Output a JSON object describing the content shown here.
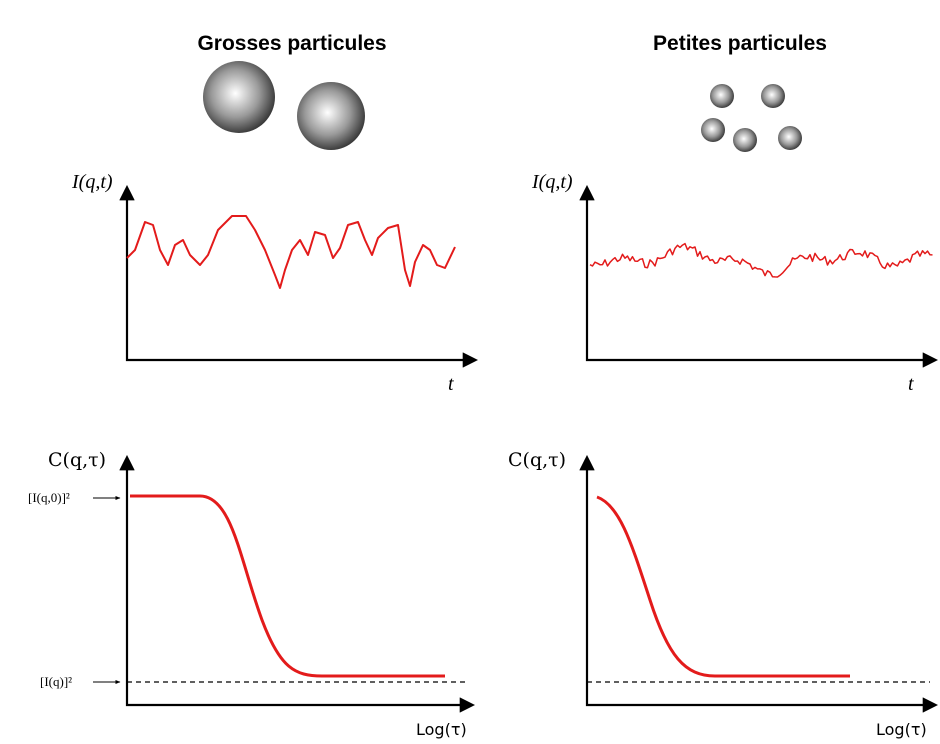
{
  "panels": [
    {
      "title": "Grosses particules",
      "intensity": {
        "y_label": "I(q,t)",
        "x_label": "t"
      },
      "correlation": {
        "y_label": "C(q,τ)",
        "x_label": "Log(τ)",
        "top_label": "[I(q,0)]²",
        "baseline_label": "[I(q)]²"
      }
    },
    {
      "title": "Petites particules",
      "intensity": {
        "y_label": "I(q,t)",
        "x_label": "t"
      },
      "correlation": {
        "y_label": "C(q,τ)",
        "x_label": "Log(τ)"
      }
    }
  ]
}
